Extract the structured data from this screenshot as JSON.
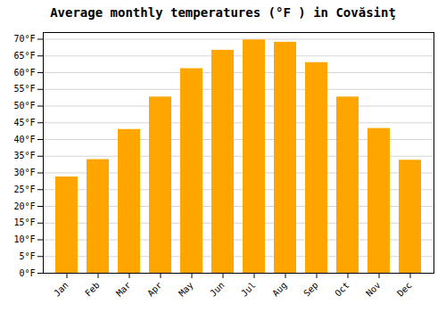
{
  "chart_data": {
    "type": "bar",
    "title": "Average monthly temperatures (°F ) in Covăsinţ",
    "categories": [
      "Jan",
      "Feb",
      "Mar",
      "Apr",
      "May",
      "Jun",
      "Jul",
      "Aug",
      "Sep",
      "Oct",
      "Nov",
      "Dec"
    ],
    "values": [
      28.8,
      34.0,
      43.0,
      52.7,
      61.2,
      66.7,
      69.8,
      69.1,
      63.0,
      52.7,
      43.3,
      33.8
    ],
    "color": "#FFA500",
    "ylim": [
      0,
      72
    ],
    "yticks": [
      {
        "value": 0,
        "label": "0°F"
      },
      {
        "value": 5,
        "label": "5°F"
      },
      {
        "value": 10,
        "label": "10°F"
      },
      {
        "value": 15,
        "label": "15°F"
      },
      {
        "value": 20,
        "label": "20°F"
      },
      {
        "value": 25,
        "label": "25°F"
      },
      {
        "value": 30,
        "label": "30°F"
      },
      {
        "value": 35,
        "label": "35°F"
      },
      {
        "value": 40,
        "label": "40°F"
      },
      {
        "value": 45,
        "label": "45°F"
      },
      {
        "value": 50,
        "label": "50°F"
      },
      {
        "value": 55,
        "label": "55°F"
      },
      {
        "value": 60,
        "label": "60°F"
      },
      {
        "value": 65,
        "label": "65°F"
      },
      {
        "value": 70,
        "label": "70°F"
      }
    ],
    "grid": true
  }
}
